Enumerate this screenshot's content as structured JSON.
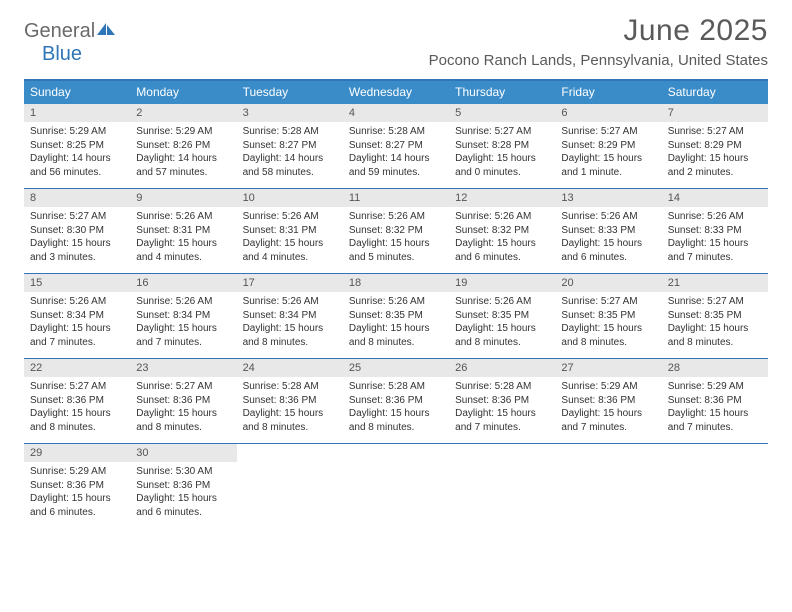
{
  "logo": {
    "part1": "General",
    "part2": "Blue"
  },
  "title": "June 2025",
  "subtitle": "Pocono Ranch Lands, Pennsylvania, United States",
  "colors": {
    "header_bar": "#3a8cc9",
    "rule": "#2f76b8",
    "daynum_bg": "#e8e8e8",
    "text": "#333333",
    "title_text": "#5a5a5a"
  },
  "days_of_week": [
    "Sunday",
    "Monday",
    "Tuesday",
    "Wednesday",
    "Thursday",
    "Friday",
    "Saturday"
  ],
  "weeks": [
    [
      {
        "n": "1",
        "sunrise": "5:29 AM",
        "sunset": "8:25 PM",
        "daylight": "14 hours and 56 minutes."
      },
      {
        "n": "2",
        "sunrise": "5:29 AM",
        "sunset": "8:26 PM",
        "daylight": "14 hours and 57 minutes."
      },
      {
        "n": "3",
        "sunrise": "5:28 AM",
        "sunset": "8:27 PM",
        "daylight": "14 hours and 58 minutes."
      },
      {
        "n": "4",
        "sunrise": "5:28 AM",
        "sunset": "8:27 PM",
        "daylight": "14 hours and 59 minutes."
      },
      {
        "n": "5",
        "sunrise": "5:27 AM",
        "sunset": "8:28 PM",
        "daylight": "15 hours and 0 minutes."
      },
      {
        "n": "6",
        "sunrise": "5:27 AM",
        "sunset": "8:29 PM",
        "daylight": "15 hours and 1 minute."
      },
      {
        "n": "7",
        "sunrise": "5:27 AM",
        "sunset": "8:29 PM",
        "daylight": "15 hours and 2 minutes."
      }
    ],
    [
      {
        "n": "8",
        "sunrise": "5:27 AM",
        "sunset": "8:30 PM",
        "daylight": "15 hours and 3 minutes."
      },
      {
        "n": "9",
        "sunrise": "5:26 AM",
        "sunset": "8:31 PM",
        "daylight": "15 hours and 4 minutes."
      },
      {
        "n": "10",
        "sunrise": "5:26 AM",
        "sunset": "8:31 PM",
        "daylight": "15 hours and 4 minutes."
      },
      {
        "n": "11",
        "sunrise": "5:26 AM",
        "sunset": "8:32 PM",
        "daylight": "15 hours and 5 minutes."
      },
      {
        "n": "12",
        "sunrise": "5:26 AM",
        "sunset": "8:32 PM",
        "daylight": "15 hours and 6 minutes."
      },
      {
        "n": "13",
        "sunrise": "5:26 AM",
        "sunset": "8:33 PM",
        "daylight": "15 hours and 6 minutes."
      },
      {
        "n": "14",
        "sunrise": "5:26 AM",
        "sunset": "8:33 PM",
        "daylight": "15 hours and 7 minutes."
      }
    ],
    [
      {
        "n": "15",
        "sunrise": "5:26 AM",
        "sunset": "8:34 PM",
        "daylight": "15 hours and 7 minutes."
      },
      {
        "n": "16",
        "sunrise": "5:26 AM",
        "sunset": "8:34 PM",
        "daylight": "15 hours and 7 minutes."
      },
      {
        "n": "17",
        "sunrise": "5:26 AM",
        "sunset": "8:34 PM",
        "daylight": "15 hours and 8 minutes."
      },
      {
        "n": "18",
        "sunrise": "5:26 AM",
        "sunset": "8:35 PM",
        "daylight": "15 hours and 8 minutes."
      },
      {
        "n": "19",
        "sunrise": "5:26 AM",
        "sunset": "8:35 PM",
        "daylight": "15 hours and 8 minutes."
      },
      {
        "n": "20",
        "sunrise": "5:27 AM",
        "sunset": "8:35 PM",
        "daylight": "15 hours and 8 minutes."
      },
      {
        "n": "21",
        "sunrise": "5:27 AM",
        "sunset": "8:35 PM",
        "daylight": "15 hours and 8 minutes."
      }
    ],
    [
      {
        "n": "22",
        "sunrise": "5:27 AM",
        "sunset": "8:36 PM",
        "daylight": "15 hours and 8 minutes."
      },
      {
        "n": "23",
        "sunrise": "5:27 AM",
        "sunset": "8:36 PM",
        "daylight": "15 hours and 8 minutes."
      },
      {
        "n": "24",
        "sunrise": "5:28 AM",
        "sunset": "8:36 PM",
        "daylight": "15 hours and 8 minutes."
      },
      {
        "n": "25",
        "sunrise": "5:28 AM",
        "sunset": "8:36 PM",
        "daylight": "15 hours and 8 minutes."
      },
      {
        "n": "26",
        "sunrise": "5:28 AM",
        "sunset": "8:36 PM",
        "daylight": "15 hours and 7 minutes."
      },
      {
        "n": "27",
        "sunrise": "5:29 AM",
        "sunset": "8:36 PM",
        "daylight": "15 hours and 7 minutes."
      },
      {
        "n": "28",
        "sunrise": "5:29 AM",
        "sunset": "8:36 PM",
        "daylight": "15 hours and 7 minutes."
      }
    ],
    [
      {
        "n": "29",
        "sunrise": "5:29 AM",
        "sunset": "8:36 PM",
        "daylight": "15 hours and 6 minutes."
      },
      {
        "n": "30",
        "sunrise": "5:30 AM",
        "sunset": "8:36 PM",
        "daylight": "15 hours and 6 minutes."
      },
      null,
      null,
      null,
      null,
      null
    ]
  ],
  "labels": {
    "sunrise": "Sunrise:",
    "sunset": "Sunset:",
    "daylight": "Daylight:"
  }
}
